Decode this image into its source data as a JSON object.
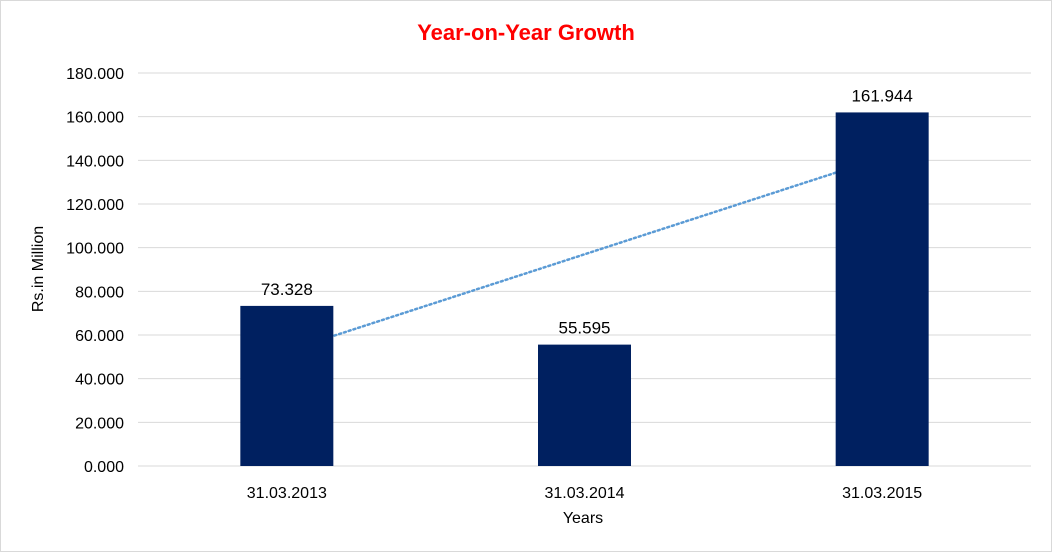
{
  "chart_data": {
    "type": "bar",
    "title": "Year-on-Year Growth",
    "xlabel": "Years",
    "ylabel": "Rs.in Million",
    "categories": [
      "31.03.2013",
      "31.03.2014",
      "31.03.2015"
    ],
    "values": [
      73.328,
      55.595,
      161.944
    ],
    "data_labels": [
      "73.328",
      "55.595",
      "161.944"
    ],
    "ylim": [
      0,
      180
    ],
    "yticks": [
      0,
      20,
      40,
      60,
      80,
      100,
      120,
      140,
      160,
      180
    ],
    "ytick_labels": [
      "0.000",
      "20.000",
      "40.000",
      "60.000",
      "80.000",
      "100.000",
      "120.000",
      "140.000",
      "160.000",
      "180.000"
    ],
    "trendline": {
      "type": "linear",
      "style": "dotted"
    },
    "grid": true,
    "legend": "none",
    "colors": {
      "bar": "#002060",
      "title": "#ff0000",
      "trendline": "#5b9bd5",
      "grid": "#d9d9d9"
    }
  }
}
